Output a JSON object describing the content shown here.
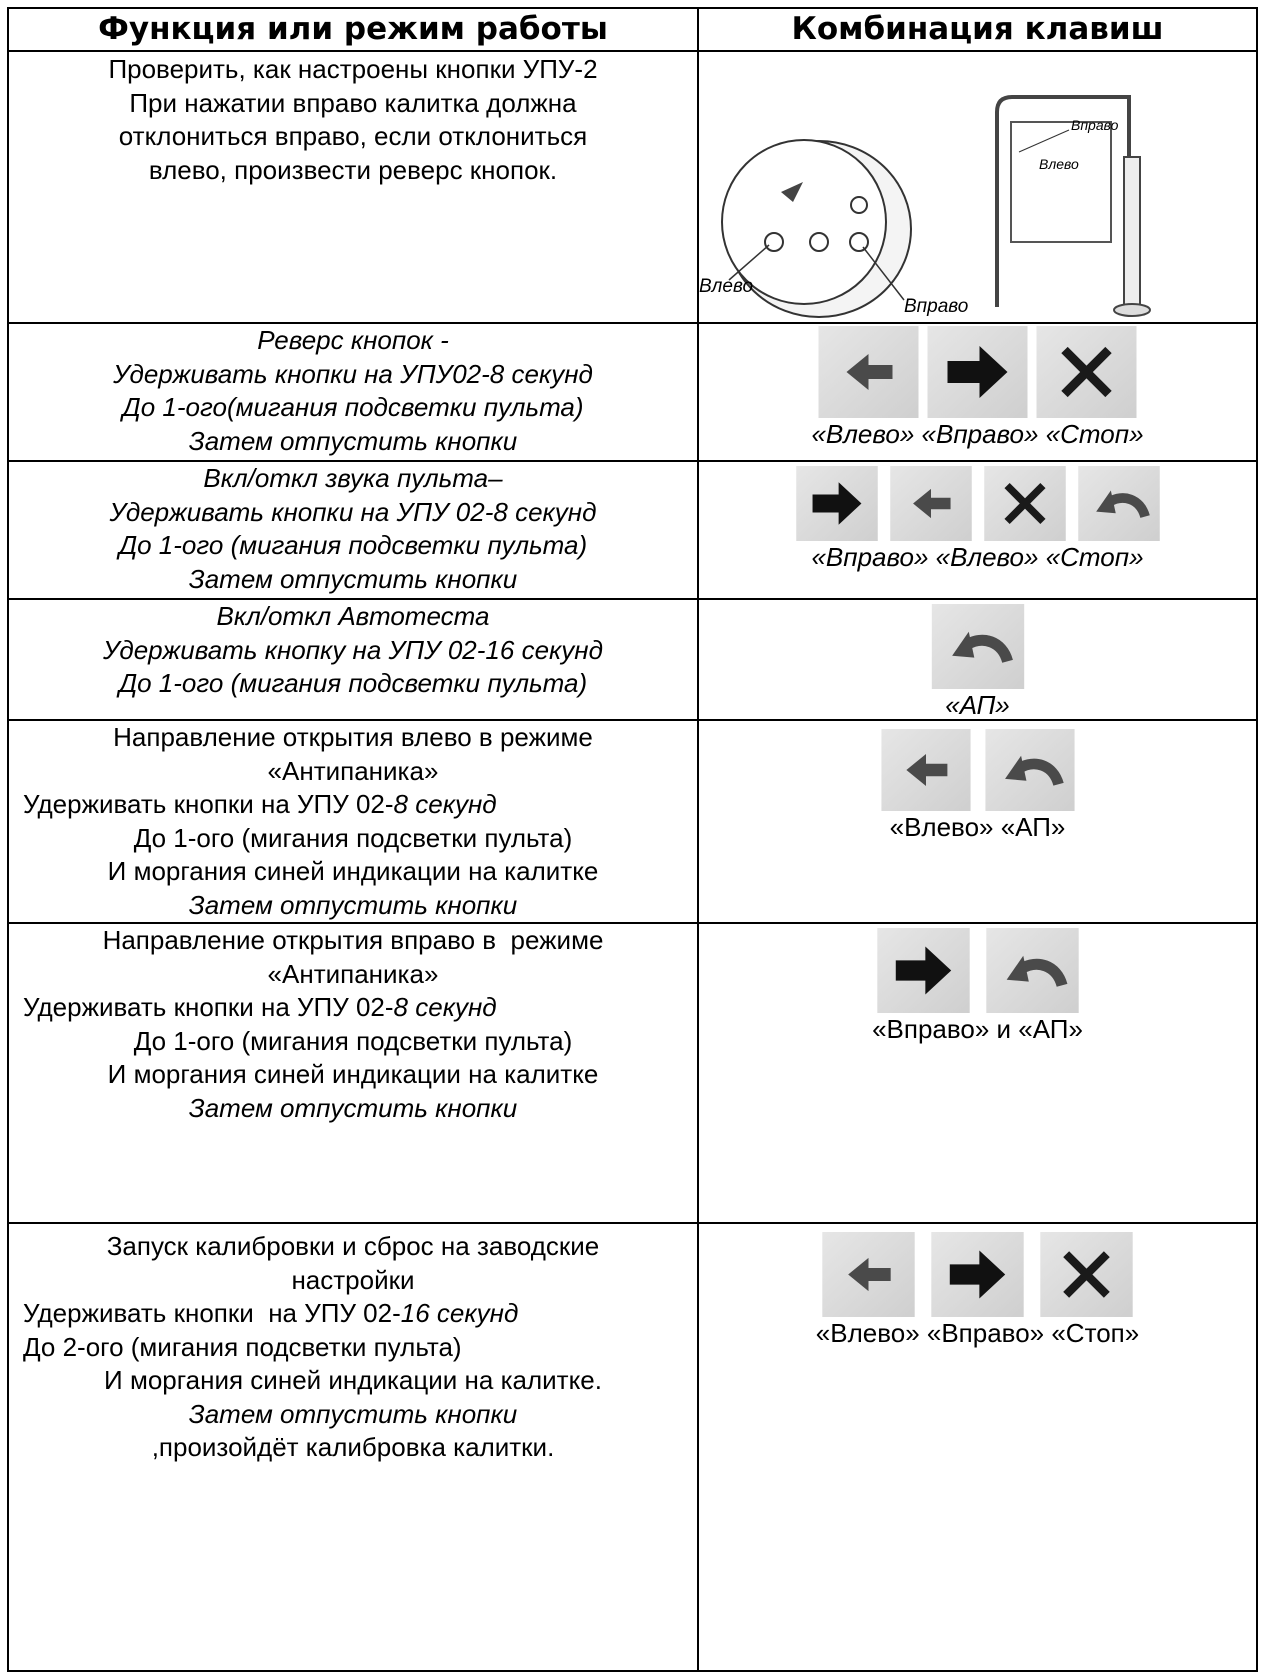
{
  "header": {
    "col1": "Функция или режим работы",
    "col2": "Комбинация клавиш"
  },
  "rows": [
    {
      "left": [
        "Проверить, как настроены кнопки УПУ-2",
        "При нажатии вправо калитка должна",
        "отклониться вправо, если отклониться",
        "влево, произвести реверс кнопок."
      ],
      "figure": {
        "gate_right": "Вправо",
        "gate_left": "Влево",
        "remote_left": "Влево",
        "remote_right": "Вправо"
      }
    },
    {
      "left": [
        "Реверс кнопок -",
        "Удерживать кнопки на УПУ02-8 секунд",
        "До 1-ого(мигания подсветки пульта)",
        "Затем отпустить кнопки"
      ],
      "caption": "«Влево» «Вправо» «Стоп»"
    },
    {
      "left": [
        "Вкл/откл звука пульта–",
        "Удерживать кнопки на УПУ 02-8 секунд",
        "До 1-ого (мигания подсветки пульта)",
        "Затем отпустить кнопки"
      ],
      "caption": "«Вправо» «Влево» «Стоп»"
    },
    {
      "left": [
        "Вкл/откл Автотеста",
        "Удерживать кнопку на УПУ 02-16 секунд",
        "До 1-ого (мигания подсветки пульта)"
      ],
      "caption": "«АП»"
    },
    {
      "left": [
        "Направление открытия влево в режиме",
        "«Антипаника»",
        [
          "Удерживать кнопки на УПУ 02-",
          "8 секунд"
        ],
        "До 1-ого (мигания подсветки пульта)",
        "И моргания синей индикации на калитке",
        "Затем отпустить кнопки"
      ],
      "caption": "«Влево» «АП»"
    },
    {
      "left": [
        "Направление открытия вправо в  режиме",
        "«Антипаника»",
        [
          "Удерживать кнопки на УПУ 02-",
          "8 секунд"
        ],
        "До 1-ого (мигания подсветки пульта)",
        "И моргания синей индикации на калитке",
        "Затем отпустить кнопки"
      ],
      "caption": "«Вправо» и «АП»"
    },
    {
      "left": [
        "Запуск калибровки и сброс на заводские",
        "настройки",
        [
          "Удерживать кнопки  на УПУ 02-",
          "16 секунд"
        ],
        "До 2-ого (мигания подсветки пульта)",
        "И моргания синей индикации на калитке.",
        "Затем отпустить кнопки",
        ",произойдёт калибровка калитки."
      ],
      "caption": "«Влево» «Вправо» «Стоп»"
    }
  ]
}
